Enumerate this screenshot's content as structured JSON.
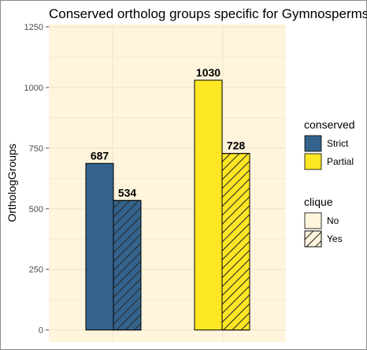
{
  "chart_data": {
    "type": "bar",
    "title": "Conserved ortholog groups specific for Gymnosperms",
    "xlabel": "",
    "ylabel": "OrthologGroups",
    "ylim": [
      -50,
      1260
    ],
    "yticks": [
      0,
      250,
      500,
      750,
      1000,
      1250
    ],
    "ytick_labels": [
      "0",
      "250",
      "500",
      "750",
      "1000",
      "1250"
    ],
    "grid": true,
    "colors": {
      "panel_background": "#fff5dc",
      "grid": "#ede4cc",
      "Strict": "#33638d",
      "Partial": "#fde725",
      "hatch": "#2b2b2b"
    },
    "bars": [
      {
        "conserved": "Strict",
        "clique": "No",
        "value": 687,
        "label": "687"
      },
      {
        "conserved": "Strict",
        "clique": "Yes",
        "value": 534,
        "label": "534"
      },
      {
        "conserved": "Partial",
        "clique": "No",
        "value": 1030,
        "label": "1030"
      },
      {
        "conserved": "Partial",
        "clique": "Yes",
        "value": 728,
        "label": "728"
      }
    ],
    "legends": [
      {
        "title": "conserved",
        "items": [
          {
            "label": "Strict",
            "fill": "#33638d",
            "hatch": false
          },
          {
            "label": "Partial",
            "fill": "#fde725",
            "hatch": false
          }
        ]
      },
      {
        "title": "clique",
        "items": [
          {
            "label": "No",
            "fill": "#fff5dc",
            "hatch": false
          },
          {
            "label": "Yes",
            "fill": "#fff5dc",
            "hatch": true
          }
        ]
      }
    ],
    "legend_position": "right"
  }
}
